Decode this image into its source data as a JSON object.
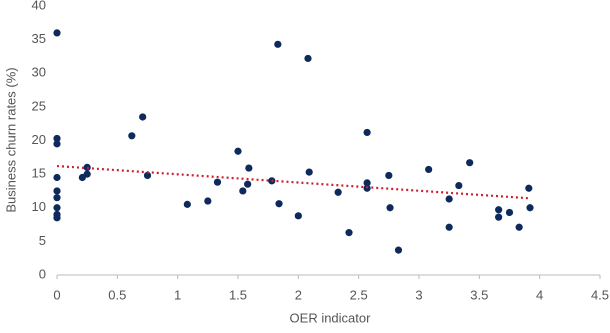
{
  "chart_data": {
    "type": "scatter",
    "x_label": "OER indicator",
    "y_label": "Business churn rates (%)",
    "xlim": [
      0,
      4.5
    ],
    "xticks": [
      0,
      0.5,
      1,
      1.5,
      2,
      2.5,
      3,
      3.5,
      4,
      4.5
    ],
    "ylim": [
      0,
      40
    ],
    "yticks": [
      0,
      5,
      10,
      15,
      20,
      25,
      30,
      35,
      40
    ],
    "color": "#0d2a5c",
    "x": [
      0,
      0,
      0,
      0,
      0,
      0,
      0,
      0,
      0,
      0.21,
      0.25,
      0.25,
      0.62,
      0.71,
      0.75,
      1.08,
      1.25,
      1.33,
      1.5,
      1.54,
      1.58,
      1.59,
      1.78,
      1.83,
      1.84,
      2.0,
      2.08,
      2.09,
      2.33,
      2.42,
      2.57,
      2.57,
      2.57,
      2.75,
      2.76,
      2.83,
      3.08,
      3.25,
      3.25,
      3.33,
      3.42,
      3.66,
      3.66,
      3.75,
      3.83,
      3.91,
      3.92
    ],
    "values": [
      36,
      20.3,
      19.5,
      14.5,
      12.5,
      11.5,
      10,
      9,
      8.5,
      14.5,
      16,
      15,
      20.7,
      23.5,
      14.8,
      10.5,
      11,
      13.8,
      18.4,
      12.5,
      13.5,
      15.9,
      14,
      34.3,
      10.6,
      8.8,
      32.2,
      15.3,
      12.3,
      6.3,
      21.2,
      13.7,
      12.9,
      14.8,
      10,
      3.7,
      15.7,
      11.3,
      7.1,
      13.3,
      16.7,
      9.7,
      8.6,
      9.3,
      7.1,
      12.9,
      10
    ],
    "trendline": {
      "x": [
        0,
        3.92
      ],
      "values": [
        16.2,
        11.4
      ],
      "color": "#cc1f2f"
    }
  }
}
